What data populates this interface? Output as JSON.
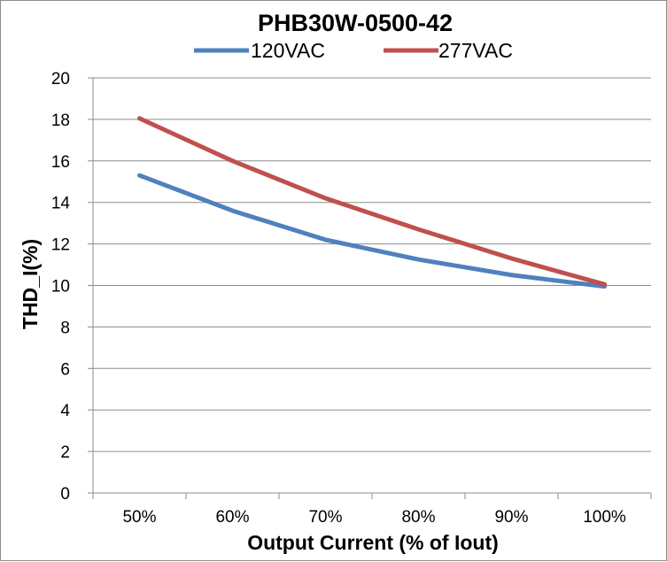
{
  "chart_data": {
    "type": "line",
    "title": "PHB30W-0500-42",
    "xlabel": "Output Current (% of Iout)",
    "ylabel": "THD_I(%)",
    "categories": [
      "50%",
      "60%",
      "70%",
      "80%",
      "90%",
      "100%"
    ],
    "ylim": [
      0,
      20
    ],
    "yticks": [
      "0",
      "2",
      "4",
      "6",
      "8",
      "10",
      "12",
      "14",
      "16",
      "18",
      "20"
    ],
    "grid": true,
    "legend": "top",
    "series": [
      {
        "name": "120VAC",
        "color": "#4f81bd",
        "values": [
          15.3,
          13.6,
          12.2,
          11.25,
          10.5,
          9.95
        ]
      },
      {
        "name": "277VAC",
        "color": "#c0504d",
        "values": [
          18.05,
          16.0,
          14.2,
          12.7,
          11.3,
          10.05
        ]
      }
    ]
  }
}
